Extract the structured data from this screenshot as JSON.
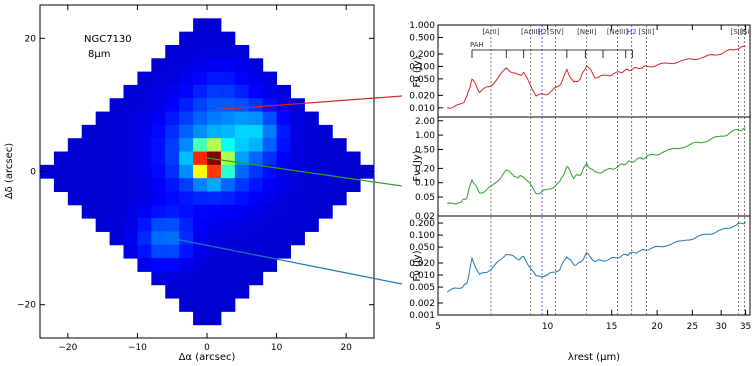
{
  "chart_data": [
    {
      "type": "heatmap",
      "title": "NGC7130",
      "subtitle": "8µm",
      "xlabel": "Δα (arcsec)",
      "ylabel": "Δδ (arcsec)",
      "xlim": [
        -24,
        24
      ],
      "ylim": [
        -25,
        25
      ],
      "x_ticks": [
        -20,
        -10,
        0,
        10,
        20
      ],
      "y_ticks": [
        -20,
        0,
        20
      ],
      "colormap": "jet",
      "grid": false,
      "legend": "none"
    },
    {
      "type": "line",
      "panels": [
        {
          "name": "top",
          "ylabel": "Fν (Jy)",
          "log_y": true,
          "y_ticks": [
            "1.000",
            "0.500",
            "0.200",
            "0.100",
            "0.050",
            "0.020",
            "0.010"
          ],
          "color": "#d62728",
          "x": [
            5.3,
            5.8,
            6.0,
            6.2,
            6.5,
            7.0,
            7.7,
            8.3,
            8.6,
            9.3,
            10.0,
            10.8,
            11.3,
            11.8,
            12.3,
            12.8,
            13.5,
            14.5,
            15.6,
            16.4,
            17.0,
            18.0,
            19.0,
            21.0,
            24.0,
            27.0,
            30.0,
            33.0,
            35.0
          ],
          "y": [
            0.01,
            0.012,
            0.018,
            0.05,
            0.025,
            0.035,
            0.09,
            0.06,
            0.07,
            0.02,
            0.022,
            0.035,
            0.08,
            0.04,
            0.05,
            0.11,
            0.055,
            0.06,
            0.07,
            0.08,
            0.085,
            0.095,
            0.1,
            0.115,
            0.14,
            0.17,
            0.21,
            0.27,
            0.3
          ]
        },
        {
          "name": "middle",
          "ylabel": "Fν (Jy)",
          "log_y": true,
          "y_ticks": [
            "2.00",
            "1.00",
            "0.50",
            "0.20",
            "0.10",
            "0.05",
            "0.02"
          ],
          "color": "#2ca02c",
          "x": [
            5.3,
            5.8,
            6.0,
            6.2,
            6.5,
            7.0,
            7.7,
            8.3,
            8.6,
            9.3,
            10.0,
            10.8,
            11.3,
            11.8,
            12.3,
            12.8,
            13.5,
            14.5,
            15.6,
            16.4,
            17.0,
            18.0,
            19.0,
            21.0,
            24.0,
            27.0,
            30.0,
            33.0,
            35.0
          ],
          "y": [
            0.035,
            0.04,
            0.05,
            0.12,
            0.06,
            0.08,
            0.18,
            0.13,
            0.14,
            0.06,
            0.07,
            0.1,
            0.22,
            0.13,
            0.15,
            0.25,
            0.16,
            0.18,
            0.22,
            0.26,
            0.28,
            0.32,
            0.36,
            0.45,
            0.6,
            0.75,
            0.95,
            1.25,
            1.4
          ]
        },
        {
          "name": "bottom",
          "ylabel": "Fν (Jy)",
          "log_y": true,
          "y_ticks": [
            "0.200",
            "0.100",
            "0.050",
            "0.020",
            "0.010",
            "0.005",
            "0.002",
            "0.001"
          ],
          "color": "#1f77b4",
          "x": [
            5.3,
            5.8,
            6.0,
            6.2,
            6.5,
            7.0,
            7.7,
            8.3,
            8.6,
            9.3,
            10.0,
            10.8,
            11.3,
            11.8,
            12.3,
            12.8,
            13.5,
            14.5,
            15.6,
            16.4,
            17.0,
            18.0,
            19.0,
            21.0,
            24.0,
            27.0,
            30.0,
            33.0,
            35.0
          ],
          "y": [
            0.004,
            0.005,
            0.006,
            0.025,
            0.01,
            0.014,
            0.035,
            0.025,
            0.028,
            0.009,
            0.01,
            0.014,
            0.03,
            0.018,
            0.02,
            0.035,
            0.022,
            0.024,
            0.028,
            0.032,
            0.035,
            0.04,
            0.045,
            0.055,
            0.075,
            0.1,
            0.13,
            0.18,
            0.21
          ]
        }
      ],
      "xlabel": "λrest (µm)",
      "x_ticks": [
        "5",
        "10",
        "15",
        "20",
        "25",
        "30",
        "35"
      ],
      "xlim": [
        5,
        36
      ],
      "lines": [
        {
          "label": "PAH",
          "group": "pah",
          "positions": [
            6.2,
            7.7,
            8.6,
            11.3,
            12.7,
            14.2,
            16.4,
            17.1
          ]
        },
        {
          "label": "[ArII]",
          "x": 6.99
        },
        {
          "label": "[ArIII]",
          "x": 8.99
        },
        {
          "label": "H2",
          "x": 9.66,
          "color": "#3b3bff"
        },
        {
          "label": "[SIV]",
          "x": 10.51
        },
        {
          "label": "[NeII]",
          "x": 12.81
        },
        {
          "label": "[NeIII]",
          "x": 15.56
        },
        {
          "label": "H2",
          "x": 17.03,
          "color": "#3b3bff"
        },
        {
          "label": "[SIII]",
          "x": 18.71
        },
        {
          "label": "[SIII]",
          "x": 33.48
        },
        {
          "label": "[Si",
          "x": 34.8
        }
      ],
      "grid": false,
      "legend": "none"
    }
  ]
}
